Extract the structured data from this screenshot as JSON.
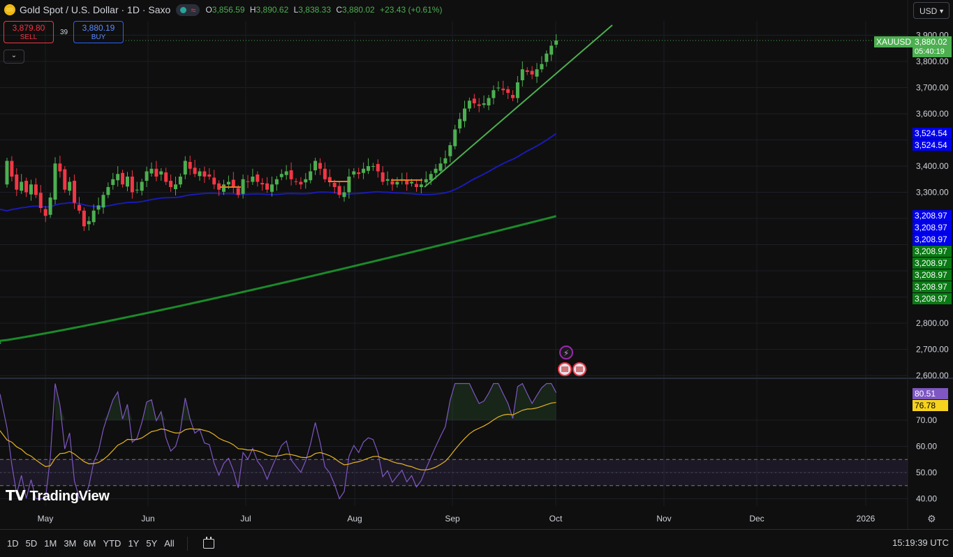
{
  "header": {
    "title": "Gold Spot / U.S. Dollar · 1D · Saxo",
    "ohlc": [
      {
        "k": "O",
        "v": "3,856.59"
      },
      {
        "k": "H",
        "v": "3,890.62"
      },
      {
        "k": "L",
        "v": "3,838.33"
      },
      {
        "k": "C",
        "v": "3,880.02"
      }
    ],
    "change": "+23.43 (+0.61%)"
  },
  "trade": {
    "sell_price": "3,879.80",
    "sell_label": "SELL",
    "buy_price": "3,880.19",
    "buy_label": "BUY",
    "spread": "39"
  },
  "currency": "USD",
  "symbol_tag": "XAUUSD",
  "last_price_tag": "3,880.02",
  "countdown": "05:40:19",
  "ma_tags": {
    "blue_top": [
      "3,524.54",
      "3,524.54"
    ],
    "blue_bottom": [
      "3,208.97",
      "3,208.97",
      "3,208.97"
    ],
    "green": [
      "3,208.97",
      "3,208.97",
      "3,208.97",
      "3,208.97",
      "3,208.97"
    ]
  },
  "rsi_tags": {
    "rsi": "80.51",
    "ma": "76.78"
  },
  "brand": "TradingView",
  "ranges": [
    "1D",
    "5D",
    "1M",
    "3M",
    "6M",
    "YTD",
    "1Y",
    "5Y",
    "All"
  ],
  "clock": "15:19:39 UTC",
  "colors": {
    "up": "#4caf50",
    "down": "#f23645",
    "ma_fast": "#1a1ab8",
    "ma_slow": "#1b8a2a",
    "rsi": "#7e57c2",
    "rsi_ma": "#e6b422"
  },
  "chart_data": {
    "type": "candlestick",
    "price_axis": {
      "ticks": [
        "2,600.00",
        "2,700.00",
        "2,800.00",
        "3,300.00",
        "3,400.00",
        "3,600.00",
        "3,700.00",
        "3,800.00",
        "3,900.00"
      ],
      "range": [
        2580,
        3935
      ]
    },
    "rsi_axis": {
      "ticks": [
        "40.00",
        "50.00",
        "60.00",
        "70.00"
      ],
      "band": [
        45,
        55
      ]
    },
    "time_axis": [
      "May",
      "Jun",
      "Jul",
      "Aug",
      "Sep",
      "Oct",
      "Nov",
      "Dec",
      "2026"
    ],
    "start_date": "2025-04-21",
    "closes": [
      3420,
      3360,
      3310,
      3340,
      3300,
      3330,
      3290,
      3240,
      3210,
      3280,
      3410,
      3380,
      3310,
      3340,
      3260,
      3230,
      3170,
      3190,
      3230,
      3250,
      3290,
      3320,
      3350,
      3370,
      3330,
      3360,
      3300,
      3310,
      3340,
      3380,
      3390,
      3360,
      3380,
      3340,
      3320,
      3330,
      3360,
      3420,
      3390,
      3370,
      3380,
      3360,
      3360,
      3330,
      3310,
      3330,
      3340,
      3320,
      3290,
      3350,
      3340,
      3360,
      3340,
      3330,
      3310,
      3330,
      3350,
      3370,
      3380,
      3350,
      3340,
      3330,
      3350,
      3380,
      3420,
      3390,
      3350,
      3340,
      3320,
      3290,
      3300,
      3360,
      3380,
      3370,
      3390,
      3400,
      3400,
      3380,
      3340,
      3350,
      3330,
      3340,
      3350,
      3330,
      3340,
      3320,
      3330,
      3350,
      3370,
      3390,
      3410,
      3430,
      3480,
      3540,
      3580,
      3620,
      3650,
      3640,
      3630,
      3640,
      3660,
      3690,
      3700,
      3690,
      3680,
      3660,
      3720,
      3770,
      3760,
      3750,
      3770,
      3790,
      3830,
      3860,
      3880
    ],
    "ma_fast_end": 3524.54,
    "ma_slow_end": 3208.97,
    "rsi_last": 80.51,
    "rsi_ma_last": 76.78
  }
}
